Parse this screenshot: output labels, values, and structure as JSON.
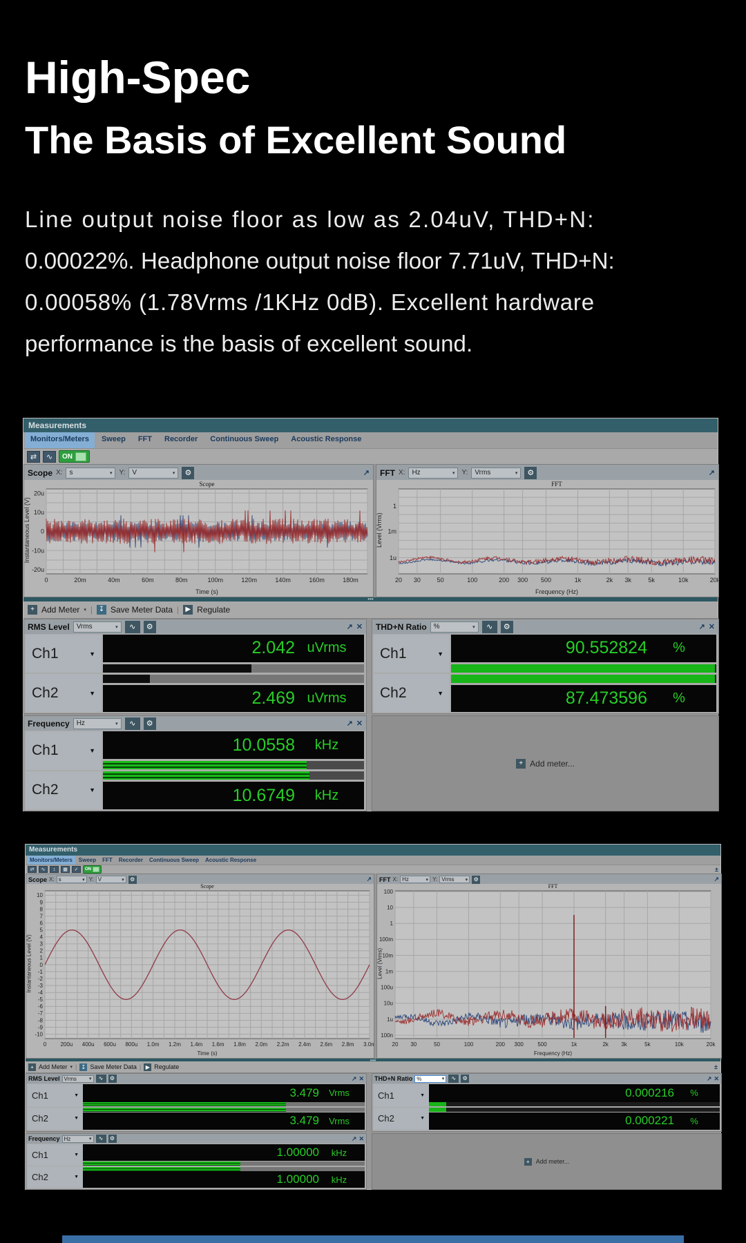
{
  "hero": {
    "title1": "High-Spec",
    "title2": "The Basis of Excellent Sound",
    "lines": [
      "Line output noise floor as low as 2.04uV, THD+N:",
      "0.00022%. Headphone output noise floor 7.71uV, THD+N:",
      "0.00058% (1.78Vrms /1KHz 0dB). Excellent hardware",
      "performance is the basis of excellent sound."
    ]
  },
  "icons": {
    "gear": "⚙",
    "expand": "↗",
    "close": "✕",
    "caret": "▾",
    "tri": "▼",
    "play": "▶",
    "plus": "+",
    "graph": "∿",
    "swap": "⇄",
    "pulse": "∿",
    "updown": "↕",
    "grid": "▦",
    "check": "✓",
    "save": "↧",
    "pm": "±",
    "dots": "•••"
  },
  "colors": {
    "page_bg": "#000000",
    "heading": "#ffffff",
    "title_bar_teal": "#335f6b",
    "selected_tab_blue": "#84aed4",
    "value_green": "#27cd27",
    "bar_green": "#19bb19",
    "on_green": "#2f9e3f",
    "bottom_strip_blue": "#3a6fa5",
    "trace_red": "#9c2f2f",
    "trace_blue": "#2f4a7c"
  },
  "win1": {
    "title": "Measurements",
    "tabs": [
      "Monitors/Meters",
      "Sweep",
      "FFT",
      "Recorder",
      "Continuous Sweep",
      "Acoustic Response"
    ],
    "on_label": "ON",
    "scope_panel": {
      "name": "Scope",
      "xl": "X:",
      "xv": "s",
      "yl": "Y:",
      "yv": "V"
    },
    "fft_panel": {
      "name": "FFT",
      "xl": "X:",
      "xv": "Hz",
      "yl": "Y:",
      "yv": "Vrms"
    },
    "meter_toolbar": {
      "add": "Add Meter",
      "save": "Save Meter Data",
      "regulate": "Regulate"
    },
    "meters": {
      "rms": {
        "name": "RMS Level",
        "unit": "Vrms",
        "ch1": "Ch1",
        "ch2": "Ch2",
        "v1": "2.042",
        "u1": "uVrms",
        "v2": "2.469",
        "u2": "uVrms",
        "b1": "width:57%",
        "b2": "width:18%"
      },
      "thd": {
        "name": "THD+N Ratio",
        "unit": "%",
        "ch1": "Ch1",
        "ch2": "Ch2",
        "v1": "90.552824",
        "u1": "%",
        "v2": "87.473596",
        "u2": "%",
        "b1": "width:99.5%",
        "b2": "width:99.5%"
      },
      "freq": {
        "name": "Frequency",
        "unit": "Hz",
        "ch1": "Ch1",
        "ch2": "Ch2",
        "v1": "10.0558",
        "u1": "kHz",
        "v2": "10.6749",
        "u2": "kHz",
        "b1": "width:78%",
        "b2": "width:79%"
      }
    },
    "add_meter_placeholder": "Add meter..."
  },
  "win2": {
    "title": "Measurements",
    "tabs": [
      "Monitors/Meters",
      "Sweep",
      "FFT",
      "Recorder",
      "Continuous Sweep",
      "Acoustic Response"
    ],
    "on_label": "ON",
    "scope_panel": {
      "name": "Scope",
      "xl": "X:",
      "xv": "s",
      "yl": "Y:",
      "yv": "V"
    },
    "fft_panel": {
      "name": "FFT",
      "xl": "X:",
      "xv": "Hz",
      "yl": "Y:",
      "yv": "Vrms"
    },
    "meter_toolbar": {
      "add": "Add Meter",
      "save": "Save Meter Data",
      "regulate": "Regulate"
    },
    "meters": {
      "rms": {
        "name": "RMS Level",
        "unit": "Vrms",
        "ch1": "Ch1",
        "ch2": "Ch2",
        "v1": "3.479",
        "u1": "Vrms",
        "v2": "3.479",
        "u2": "Vrms",
        "b1": "width:72%",
        "b2": "width:72%"
      },
      "thd": {
        "name": "THD+N Ratio",
        "unit": "%",
        "ch1": "Ch1",
        "ch2": "Ch2",
        "v1": "0.000216",
        "u1": "%",
        "v2": "0.000221",
        "u2": "%",
        "b1": "width:6%",
        "b2": "width:6%"
      },
      "freq": {
        "name": "Frequency",
        "unit": "Hz",
        "ch1": "Ch1",
        "ch2": "Ch2",
        "v1": "1.00000",
        "u1": "kHz",
        "v2": "1.00000",
        "u2": "kHz",
        "b1": "width:56%",
        "b2": "width:56%"
      }
    },
    "add_meter_placeholder": "Add meter..."
  },
  "chart_data": [
    {
      "mount": "cw1s",
      "type": "line",
      "title": "Scope",
      "xlabel": "Time (s)",
      "ylabel": "Instantaneous Level (V)",
      "x_tick_labels": [
        "0",
        "20m",
        "40m",
        "60m",
        "80m",
        "100m",
        "120m",
        "140m",
        "160m",
        "180m"
      ],
      "y_tick_labels": [
        "20u",
        "10u",
        "0",
        "-10u",
        "-20u"
      ],
      "ylim": [
        "-20u",
        "20u"
      ],
      "signal": "broadband noise floor, approx. ±5 uV around 0",
      "font": 9,
      "margins": {
        "t": 13,
        "l": 32,
        "r": 8,
        "b": 33
      },
      "yticks": {
        "from": 0.05,
        "step": 0.225,
        "labels": [
          "20u",
          "10u",
          "0",
          "-10u",
          "-20u"
        ]
      },
      "ygrid": {
        "from": 0.05,
        "step": 0.1125,
        "count": 9
      },
      "xticks": {
        "fracs": [
          0,
          0.1053,
          0.2105,
          0.3158,
          0.4211,
          0.5263,
          0.6316,
          0.7368,
          0.8421,
          0.9474
        ],
        "labels": [
          "0",
          "20m",
          "40m",
          "60m",
          "80m",
          "100m",
          "120m",
          "140m",
          "160m",
          "180m"
        ]
      },
      "xgrid": {
        "count": 20
      },
      "series": [
        {
          "name": "Ch1",
          "kind": "noise",
          "color": "#2f4a7c",
          "center": 0.5,
          "amp": 0.1,
          "seed": 3
        },
        {
          "name": "Ch2",
          "kind": "noise",
          "color": "#9c2f2f",
          "center": 0.5,
          "amp": 0.13,
          "seed": 7
        }
      ]
    },
    {
      "mount": "cw1f",
      "type": "line",
      "title": "FFT",
      "xlabel": "Frequency (Hz)",
      "ylabel": "Level (Vrms)",
      "x_tick_labels": [
        "20",
        "30",
        "50",
        "100",
        "200",
        "300",
        "500",
        "1k",
        "2k",
        "3k",
        "5k",
        "10k",
        "20k"
      ],
      "y_tick_labels": [
        "1",
        "1m",
        "1u"
      ],
      "signal": "noise floor around 0.5 uVrms, 20 Hz - 20 kHz, no tone",
      "font": 9,
      "margins": {
        "t": 13,
        "l": 32,
        "r": 5,
        "b": 33
      },
      "yticks": {
        "fracs": [
          0.2,
          0.5,
          0.81
        ],
        "labels": [
          "1",
          "1m",
          "1u"
        ]
      },
      "ygrid": {
        "from": 0.0983,
        "step": 0.10167,
        "count": 8
      },
      "xticks": {
        "fracs": [
          0,
          0.0587,
          0.1325,
          0.233,
          0.3333,
          0.3921,
          0.4661,
          0.5667,
          0.6667,
          0.7255,
          0.7995,
          0.9,
          1
        ],
        "labels": [
          "20",
          "30",
          "50",
          "100",
          "200",
          "300",
          "500",
          "1k",
          "2k",
          "3k",
          "5k",
          "10k",
          "20k"
        ]
      },
      "xgrid": {
        "ticks": true
      },
      "series": [
        {
          "name": "Ch1",
          "kind": "fftfloor",
          "color": "#2f4a7c",
          "base": 0.875,
          "wave": 0.045,
          "noise": 0.022,
          "seed": 11
        },
        {
          "name": "Ch2",
          "kind": "fftfloor",
          "color": "#9c2f2f",
          "base": 0.862,
          "wave": 0.06,
          "noise": 0.028,
          "seed": 5
        }
      ]
    },
    {
      "mount": "cw2s",
      "type": "line",
      "title": "Scope",
      "xlabel": "Time (s)",
      "ylabel": "Instantaneous Level (V)",
      "x_tick_labels": [
        "0",
        "200u",
        "400u",
        "600u",
        "800u",
        "1.0m",
        "1.2m",
        "1.4m",
        "1.6m",
        "1.8m",
        "2.0m",
        "2.2m",
        "2.4m",
        "2.6m",
        "2.8m",
        "3.0m"
      ],
      "y_tick_labels": [
        "10",
        "9",
        "8",
        "7",
        "6",
        "5",
        "4",
        "3",
        "2",
        "1",
        "0",
        "-1",
        "-2",
        "-3",
        "-4",
        "-5",
        "-6",
        "-7",
        "-8",
        "-9",
        "-10"
      ],
      "ylim": [
        -10,
        10
      ],
      "signal": "1 kHz sine wave, 5 V peak (3.479 Vrms), 3 cycles over 3 ms",
      "font": 8,
      "margins": {
        "t": 10,
        "l": 27,
        "r": 6,
        "b": 28
      },
      "yticks": {
        "from": 0.03,
        "step": 0.047,
        "labels": [
          "10",
          "9",
          "8",
          "7",
          "6",
          "5",
          "4",
          "3",
          "2",
          "1",
          "0",
          "-1",
          "-2",
          "-3",
          "-4",
          "-5",
          "-6",
          "-7",
          "-8",
          "-9",
          "-10"
        ]
      },
      "ygrid": {
        "from": 0.03,
        "step": 0.047,
        "count": 21
      },
      "xticks": {
        "fracs": [
          0,
          0.0667,
          0.1333,
          0.2,
          0.2667,
          0.3333,
          0.4,
          0.4667,
          0.5333,
          0.6,
          0.6667,
          0.7333,
          0.8,
          0.8667,
          0.9333,
          1
        ],
        "labels": [
          "0",
          "200u",
          "400u",
          "600u",
          "800u",
          "1.0m",
          "1.2m",
          "1.4m",
          "1.6m",
          "1.8m",
          "2.0m",
          "2.2m",
          "2.4m",
          "2.6m",
          "2.8m",
          "3.0m"
        ]
      },
      "xgrid": {
        "count": 31
      },
      "series": [
        {
          "name": "Ch1",
          "kind": "sine",
          "color": "#8f3a46",
          "center": 0.5,
          "amp": 0.235,
          "cycles": 3
        }
      ]
    },
    {
      "mount": "cw2f",
      "type": "line",
      "title": "FFT",
      "xlabel": "Frequency (Hz)",
      "ylabel": "Level (Vrms)",
      "x_tick_labels": [
        "20",
        "30",
        "50",
        "100",
        "200",
        "300",
        "500",
        "1k",
        "2k",
        "3k",
        "5k",
        "10k",
        "20k"
      ],
      "y_tick_labels": [
        "100",
        "10",
        "1",
        "100m",
        "10m",
        "1m",
        "100u",
        "10u",
        "1u",
        "100n"
      ],
      "signal": "1 kHz fundamental at 3.479 Vrms, small 2 kHz harmonic, noise floor near 100 nVrms",
      "font": 8,
      "margins": {
        "t": 10,
        "l": 26,
        "r": 15,
        "b": 28
      },
      "yticks": {
        "fracs": [
          0.005,
          0.113,
          0.221,
          0.329,
          0.437,
          0.545,
          0.653,
          0.761,
          0.869,
          0.977
        ],
        "labels": [
          "100",
          "10",
          "1",
          "100m",
          "10m",
          "1m",
          "100u",
          "10u",
          "1u",
          "100n"
        ]
      },
      "ygrid": {
        "from": 0.005,
        "step": 0.108,
        "count": 10
      },
      "xticks": {
        "fracs": [
          0,
          0.0587,
          0.1325,
          0.233,
          0.3333,
          0.3921,
          0.4661,
          0.5667,
          0.6667,
          0.7255,
          0.7995,
          0.9,
          1
        ],
        "labels": [
          "20",
          "30",
          "50",
          "100",
          "200",
          "300",
          "500",
          "1k",
          "2k",
          "3k",
          "5k",
          "10k",
          "20k"
        ]
      },
      "xgrid": {
        "ticks": true
      },
      "series": [
        {
          "name": "Ch1",
          "kind": "fftfloor",
          "color": "#2f4a7c",
          "base": 0.895,
          "wave": 0.05,
          "noise": 0.045,
          "seed": 13
        },
        {
          "name": "Ch2",
          "kind": "fftfloor",
          "color": "#9c2f2f",
          "base": 0.885,
          "wave": 0.06,
          "noise": 0.05,
          "seed": 4
        },
        {
          "name": "Ch2-tones",
          "kind": "spikes",
          "color": "#7b1f1f",
          "spikes": [
            {
              "x": 0.5667,
              "top": 0.163
            },
            {
              "x": 0.6667,
              "top": 0.78
            }
          ]
        }
      ]
    }
  ]
}
